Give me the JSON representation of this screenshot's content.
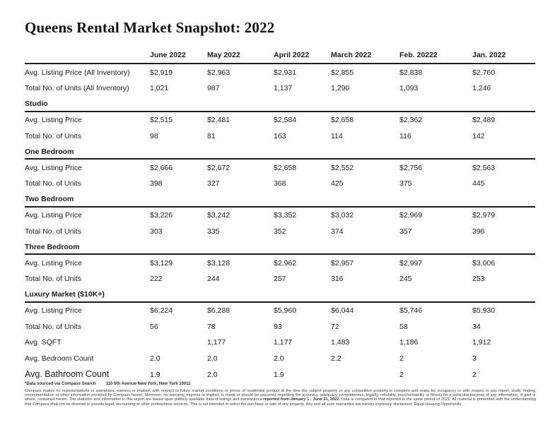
{
  "title": "Queens Rental Market Snapshot: 2022",
  "colors": {
    "text": "#1b1b1b",
    "rule": "#1c1c1c"
  },
  "table": {
    "columns": [
      "June 2022",
      "May 2022",
      "April 2022",
      "March 2022",
      "Feb. 20222",
      "Jan. 2022"
    ],
    "sections": [
      {
        "heading": null,
        "rows": [
          {
            "label": "Avg. Listing Price (All Inventory)",
            "values": [
              "$2,919",
              "$2,963",
              "$2,931",
              "$2,855",
              "$2,838",
              "$2,760"
            ]
          },
          {
            "label": "Total No. of Units (All Inventory)",
            "values": [
              "1,021",
              "987",
              "1,137",
              "1,290",
              "1,093",
              "1,246"
            ]
          }
        ]
      },
      {
        "heading": "Studio",
        "rows": [
          {
            "label": "Avg. Listing Price",
            "values": [
              "$2,515",
              "$2,481",
              "$2,584",
              "$2,658",
              "$2,362",
              "$2,489"
            ]
          },
          {
            "label": "Total No. of Units",
            "values": [
              "98",
              "81",
              "163",
              "114",
              "116",
              "142"
            ]
          }
        ]
      },
      {
        "heading": "One Bedroom",
        "rows": [
          {
            "label": "Avg. Listing Price",
            "values": [
              "$2,666",
              "$2,672",
              "$2,658",
              "$2,552",
              "$2,756",
              "$2,563"
            ]
          },
          {
            "label": "Total No. of Units",
            "values": [
              "398",
              "327",
              "368",
              "425",
              "375",
              "445"
            ]
          }
        ]
      },
      {
        "heading": "Two Bedroom",
        "rows": [
          {
            "label": "Avg. Listing Price",
            "values": [
              "$3,226",
              "$3,242",
              "$3,352",
              "$3,032",
              "$2,969",
              "$2,979"
            ]
          },
          {
            "label": "Total No. of Units",
            "values": [
              "303",
              "335",
              "352",
              "374",
              "357",
              "396"
            ]
          }
        ]
      },
      {
        "heading": "Three Bedroom",
        "rows": [
          {
            "label": "Avg. Listing Price",
            "values": [
              "$3,129",
              "$3,128",
              "$2,962",
              "$2,957",
              "$2,997",
              "$3,006"
            ]
          },
          {
            "label": "Total No. of Units",
            "values": [
              "222",
              "244",
              "257",
              "316",
              "245",
              "253"
            ]
          }
        ]
      },
      {
        "heading": "Luxury Market ($10K+)",
        "rows": [
          {
            "label": "Avg. Listing Price",
            "values": [
              "$6,224",
              "$6,288",
              "$5,960",
              "$6,044",
              "$5,746",
              "$5,930"
            ]
          },
          {
            "label": "Total No. of Units",
            "values": [
              "56",
              "78",
              "93",
              "72",
              "58",
              "34"
            ]
          },
          {
            "label": "Avg. SQFT",
            "values": [
              "",
              "1,177",
              "1,177",
              "1,483",
              "1,186",
              "1,912"
            ]
          },
          {
            "label": "Avg. Bedroom Count",
            "values": [
              "2.0",
              "2.0",
              "2.0",
              "2.2",
              "2",
              "3"
            ]
          },
          {
            "label": "Avg. Bathroom Count",
            "values": [
              "1.9",
              "2.0",
              "1.9",
              "",
              "2",
              "2"
            ],
            "emphasis": true
          }
        ]
      }
    ]
  },
  "footer": {
    "source_line": "*Data sourced via Compass Search",
    "address": "110 5th Avenue New York, New York 10011",
    "disclaimer_pre": "Compass makes no representations or warranties, express or implied, with respect to future market conditions or prices of residential product at the time the subject property or any competitive property is complete and ready for occupancy or with respect to any report, study, finding, recommendation or other information provided by Compass herein. Moreover, no warranty, express or implied, is made or should be assumed regarding the accuracy, adequacy, completeness, legality, reliability, merchantability or fitness for a particular purpose of any information, in part or whole, contained herein. The statistics and information in this report are based upon publicly available data of listings and transactions ",
    "disclaimer_bold": "reported from January 1 - June 31, 2022.",
    "disclaimer_post": " Data is compared to that reported in the same period of 2021.  All material is presented with the understanding that Compass shall not be deemed to provide legal, accounting or other professional services. This is not intended to solicit the purchase or sale of any property. Any and all such warranties are hereby expressly disclaimed. Equal Housing Opportunity."
  }
}
